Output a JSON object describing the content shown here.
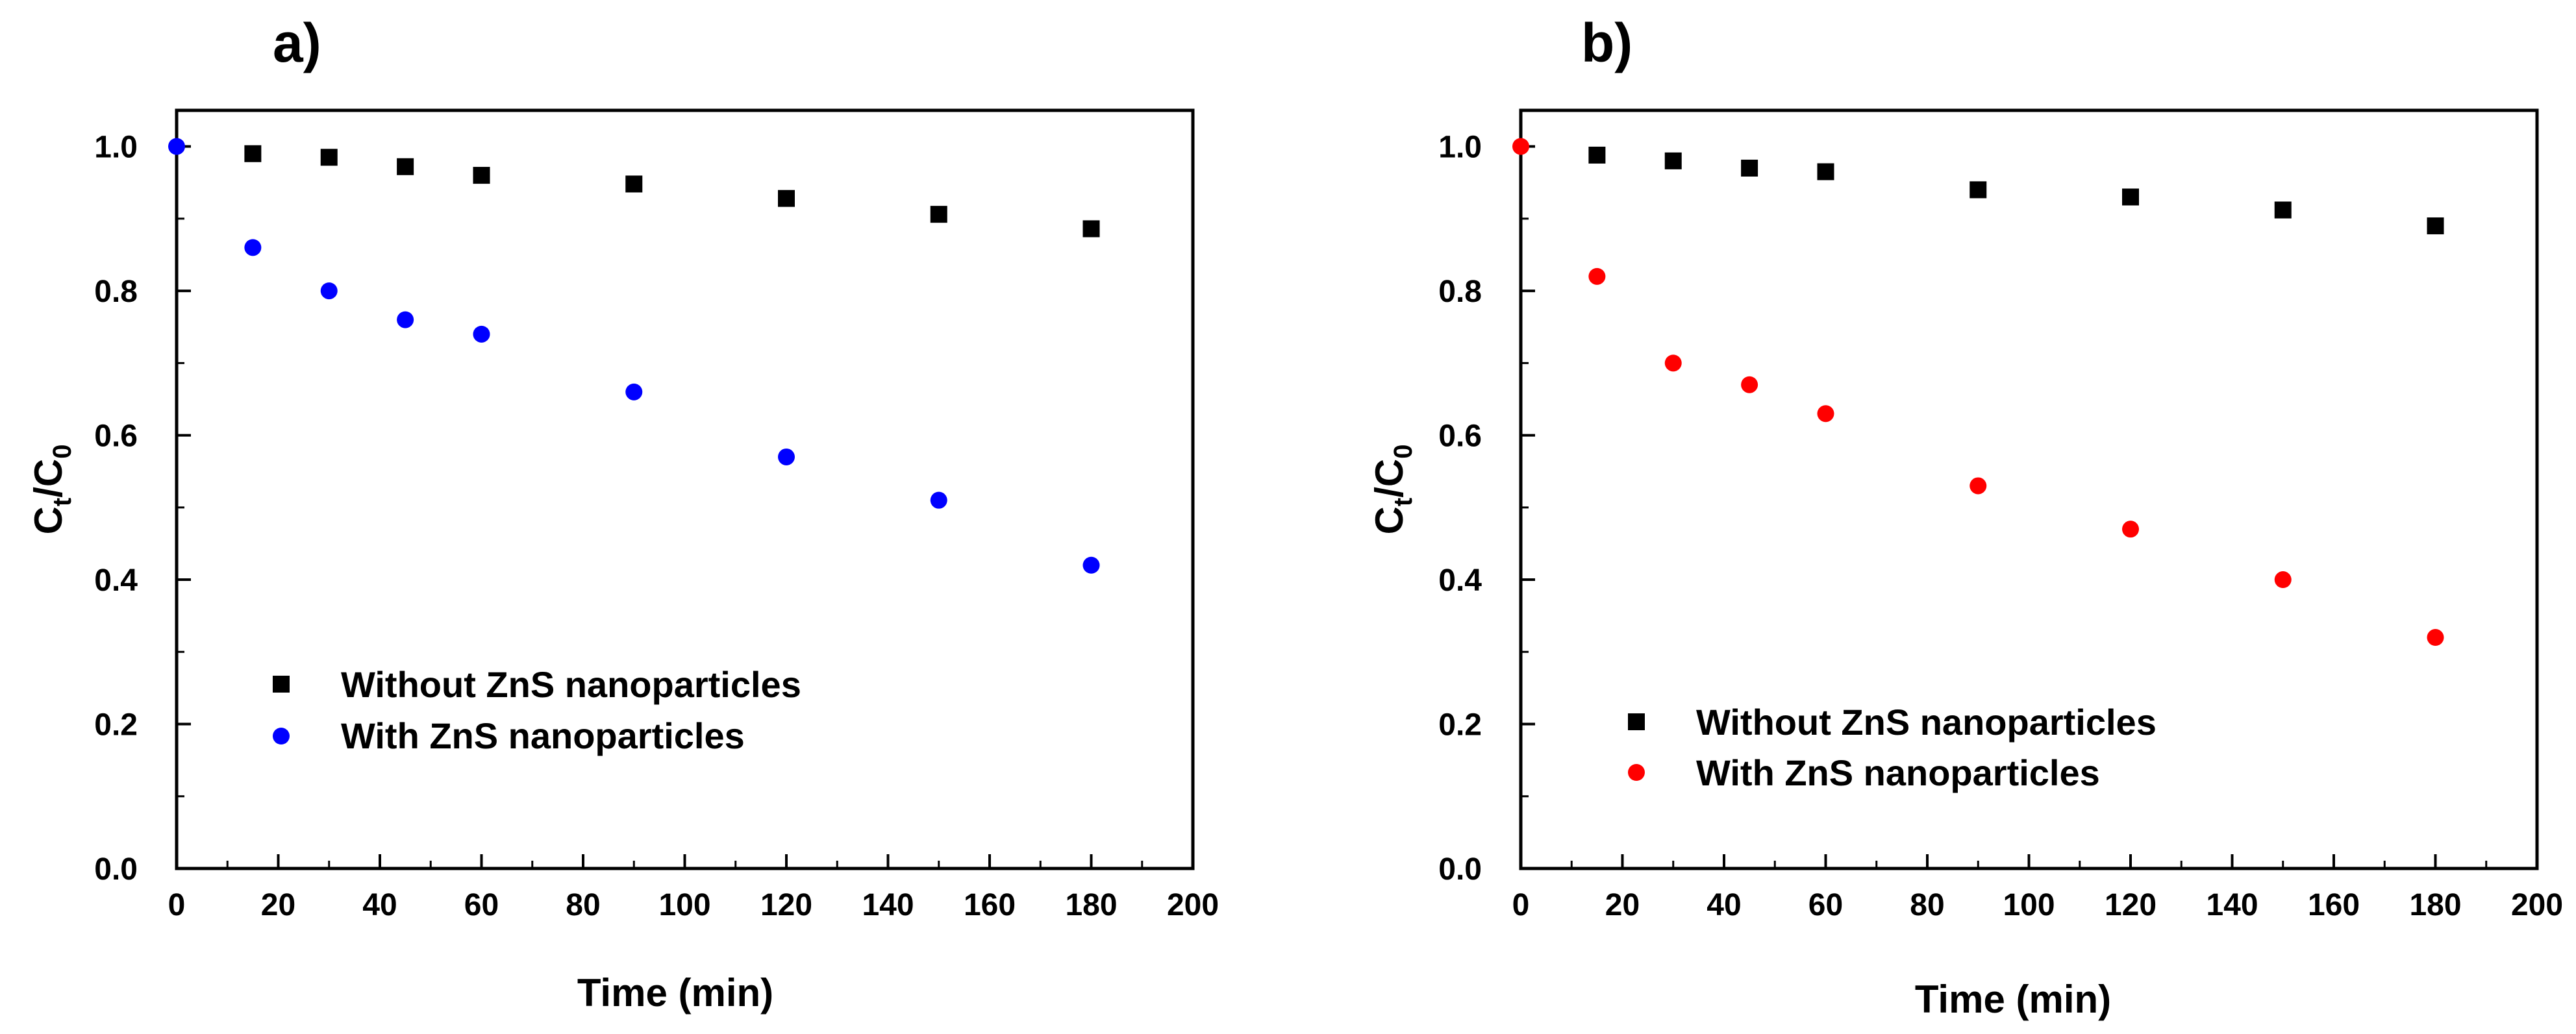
{
  "chart_data": [
    {
      "type": "scatter",
      "panel_label": "a)",
      "xlabel": "Time (min)",
      "ylabel_main": "C",
      "ylabel_sub1": "t",
      "ylabel_slash": "/C",
      "ylabel_sub2": "0",
      "xlim": [
        0,
        200
      ],
      "ylim": [
        0.0,
        1.05
      ],
      "x_ticks": [
        "0",
        "20",
        "40",
        "60",
        "80",
        "100",
        "120",
        "140",
        "160",
        "180",
        "200"
      ],
      "y_ticks": [
        "0.0",
        "0.2",
        "0.4",
        "0.6",
        "0.8",
        "1.0"
      ],
      "legend_position": "lower-left",
      "series": [
        {
          "name": "Without ZnS nanoparticles",
          "marker": "square",
          "color": "#000000",
          "x": [
            15,
            30,
            45,
            60,
            90,
            120,
            150,
            180
          ],
          "y": [
            0.99,
            0.985,
            0.972,
            0.96,
            0.948,
            0.928,
            0.906,
            0.886
          ]
        },
        {
          "name": "With ZnS nanoparticles",
          "marker": "circle",
          "color": "#0000ff",
          "x": [
            0,
            15,
            30,
            45,
            60,
            90,
            120,
            150,
            180
          ],
          "y": [
            1.0,
            0.86,
            0.8,
            0.76,
            0.74,
            0.66,
            0.57,
            0.51,
            0.42
          ]
        }
      ]
    },
    {
      "type": "scatter",
      "panel_label": "b)",
      "xlabel": "Time (min)",
      "ylabel_main": "C",
      "ylabel_sub1": "t",
      "ylabel_slash": "/C",
      "ylabel_sub2": "0",
      "xlim": [
        0,
        200
      ],
      "ylim": [
        0.0,
        1.05
      ],
      "x_ticks": [
        "0",
        "20",
        "40",
        "60",
        "80",
        "100",
        "120",
        "140",
        "160",
        "180",
        "200"
      ],
      "y_ticks": [
        "0.0",
        "0.2",
        "0.4",
        "0.6",
        "0.8",
        "1.0"
      ],
      "legend_position": "lower-left",
      "series": [
        {
          "name": "Without ZnS nanoparticles",
          "marker": "square",
          "color": "#000000",
          "x": [
            15,
            30,
            45,
            60,
            90,
            120,
            150,
            180
          ],
          "y": [
            0.988,
            0.98,
            0.97,
            0.965,
            0.94,
            0.93,
            0.912,
            0.89
          ]
        },
        {
          "name": "With ZnS nanoparticles",
          "marker": "circle",
          "color": "#ff0000",
          "x": [
            0,
            15,
            30,
            45,
            60,
            90,
            120,
            150,
            180
          ],
          "y": [
            1.0,
            0.82,
            0.7,
            0.67,
            0.63,
            0.53,
            0.47,
            0.4,
            0.32
          ]
        }
      ]
    }
  ]
}
